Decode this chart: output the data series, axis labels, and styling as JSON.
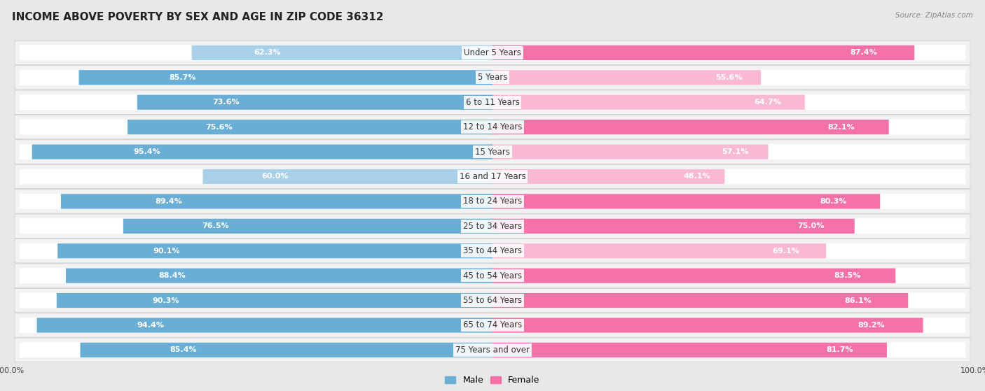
{
  "title": "INCOME ABOVE POVERTY BY SEX AND AGE IN ZIP CODE 36312",
  "source": "Source: ZipAtlas.com",
  "categories": [
    "Under 5 Years",
    "5 Years",
    "6 to 11 Years",
    "12 to 14 Years",
    "15 Years",
    "16 and 17 Years",
    "18 to 24 Years",
    "25 to 34 Years",
    "35 to 44 Years",
    "45 to 54 Years",
    "55 to 64 Years",
    "65 to 74 Years",
    "75 Years and over"
  ],
  "male_values": [
    62.3,
    85.7,
    73.6,
    75.6,
    95.4,
    60.0,
    89.4,
    76.5,
    90.1,
    88.4,
    90.3,
    94.4,
    85.4
  ],
  "female_values": [
    87.4,
    55.6,
    64.7,
    82.1,
    57.1,
    48.1,
    80.3,
    75.0,
    69.1,
    83.5,
    86.1,
    89.2,
    81.7
  ],
  "male_color": "#6aaed6",
  "female_color": "#f472a8",
  "male_light_color": "#a8d0e8",
  "female_light_color": "#f9b8d4",
  "background_color": "#e8e8e8",
  "row_bg_color": "#f2f2f2",
  "bar_bg_color": "#ffffff",
  "title_fontsize": 11,
  "label_fontsize": 8.5,
  "value_fontsize": 8,
  "legend_fontsize": 9,
  "axis_label_fontsize": 8
}
